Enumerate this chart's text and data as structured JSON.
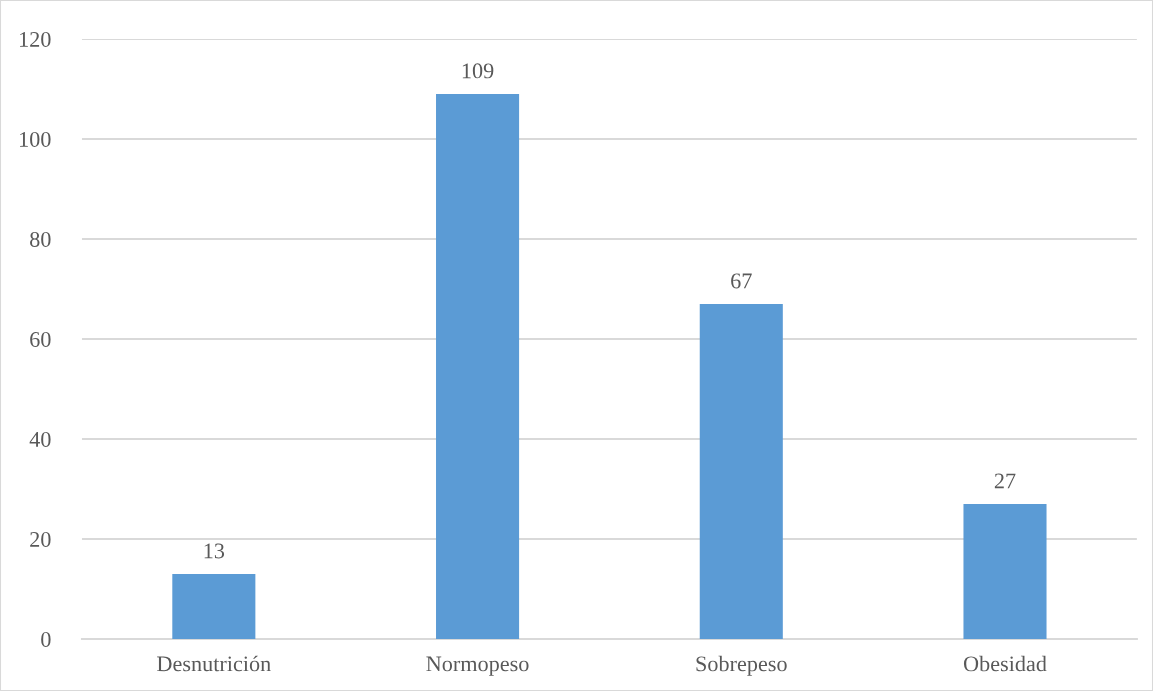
{
  "chart_data": {
    "type": "bar",
    "categories": [
      "Desnutrición",
      "Normopeso",
      "Sobrepeso",
      "Obesidad"
    ],
    "values": [
      13,
      109,
      67,
      27
    ],
    "color": "#5b9bd5",
    "ylim": [
      0,
      120
    ],
    "yticks": [
      0,
      20,
      40,
      60,
      80,
      100,
      120
    ],
    "grid": "y",
    "data_labels": true
  }
}
